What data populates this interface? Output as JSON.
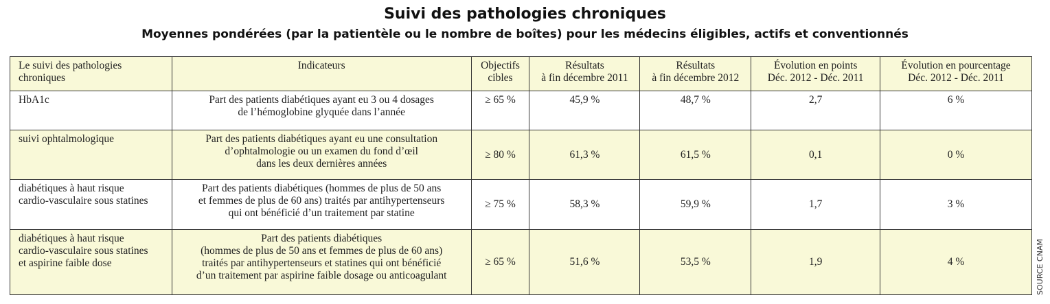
{
  "title": "Suivi des pathologies chroniques",
  "subtitle": "Moyennes pondérées (par la patientèle ou le nombre de boîtes) pour les médecins éligibles, actifs et conventionnés",
  "source": "SOURCE CNAM",
  "headers": [
    "Le suivi des pathologies\nchroniques",
    "Indicateurs",
    "Objectifs\ncibles",
    "Résultats\nà fin décembre 2011",
    "Résultats\nà fin décembre 2012",
    "Évolution en points\nDéc. 2012 - Déc. 2011",
    "Évolution en pourcentage\nDéc. 2012 - Déc. 2011"
  ],
  "rows": [
    [
      "HbA1c",
      "Part des patients diabétiques ayant eu 3 ou 4 dosages\nde l’hémoglobine glyquée dans l’année",
      "≥ 65 %",
      "45,9 %",
      "48,7 %",
      "2,7",
      "6 %"
    ],
    [
      "suivi ophtalmologique",
      "Part des patients diabétiques ayant eu une consultation\nd’ophtalmologie ou un examen du fond d’œil\ndans les deux dernières années",
      "≥ 80 %",
      "61,3 %",
      "61,5 %",
      "0,1",
      "0 %"
    ],
    [
      "diabétiques à haut risque\ncardio-vasculaire sous statines",
      "Part des patients diabétiques (hommes de plus de 50 ans\net femmes de plus de 60 ans) traités par antihypertenseurs\nqui ont bénéficié d’un traitement par statine",
      "≥ 75 %",
      "58,3 %",
      "59,9 %",
      "1,7",
      "3 %"
    ],
    [
      "diabétiques à haut risque\ncardio-vasculaire sous statines\net aspirine faible dose",
      "Part des patients diabétiques\n(hommes de plus de 50 ans et femmes de plus de 60 ans)\ntraités par antihypertenseurs et statines qui ont bénéficié\nd’un traitement par aspirine faible dosage ou anticoagulant",
      "≥ 65  %",
      "51,6 %",
      "53,5 %",
      "1,9",
      "4 %"
    ]
  ]
}
